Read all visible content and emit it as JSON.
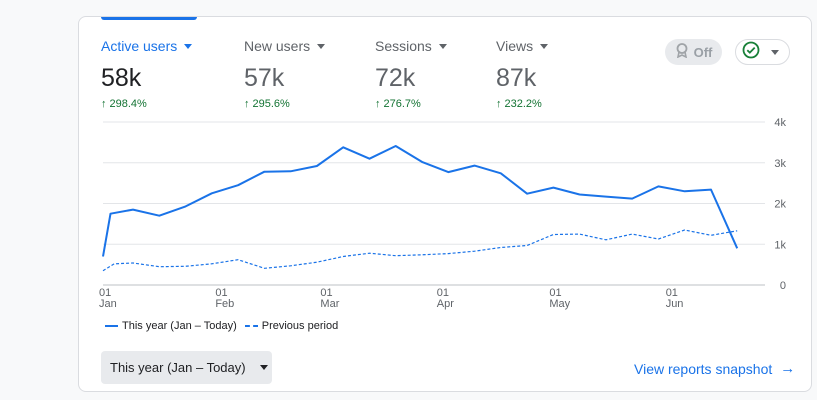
{
  "metrics": [
    {
      "label": "Active users",
      "value": "58k",
      "change": "298.4%"
    },
    {
      "label": "New users",
      "value": "57k",
      "change": "295.6%"
    },
    {
      "label": "Sessions",
      "value": "72k",
      "change": "276.7%"
    },
    {
      "label": "Views",
      "value": "87k",
      "change": "232.2%"
    }
  ],
  "toggle": {
    "label": "Off"
  },
  "chart_data": {
    "type": "line",
    "y_tick_labels": [
      "0",
      "1k",
      "2k",
      "3k",
      "4k"
    ],
    "ylim": [
      0,
      4000
    ],
    "x_ticks": [
      {
        "day": "01",
        "month": "Jan",
        "index": 0
      },
      {
        "day": "01",
        "month": "Feb",
        "index": 31
      },
      {
        "day": "01",
        "month": "Mar",
        "index": 59
      },
      {
        "day": "01",
        "month": "Apr",
        "index": 90
      },
      {
        "day": "01",
        "month": "May",
        "index": 120
      },
      {
        "day": "01",
        "month": "Jun",
        "index": 151
      }
    ],
    "grid": true,
    "series": [
      {
        "name": "This year (Jan – Today)",
        "style": "solid",
        "color": "#1a73e8",
        "points": [
          [
            0,
            700
          ],
          [
            2,
            1750
          ],
          [
            8,
            1850
          ],
          [
            15,
            1700
          ],
          [
            22,
            1930
          ],
          [
            29,
            2250
          ],
          [
            36,
            2450
          ],
          [
            43,
            2780
          ],
          [
            50,
            2790
          ],
          [
            57,
            2920
          ],
          [
            64,
            3380
          ],
          [
            71,
            3100
          ],
          [
            78,
            3410
          ],
          [
            85,
            3020
          ],
          [
            92,
            2770
          ],
          [
            99,
            2930
          ],
          [
            106,
            2740
          ],
          [
            113,
            2240
          ],
          [
            120,
            2390
          ],
          [
            127,
            2220
          ],
          [
            134,
            2170
          ],
          [
            141,
            2120
          ],
          [
            148,
            2420
          ],
          [
            155,
            2300
          ],
          [
            162,
            2340
          ],
          [
            169,
            900
          ]
        ]
      },
      {
        "name": "Previous period",
        "style": "dashed",
        "color": "#1a73e8",
        "points": [
          [
            0,
            350
          ],
          [
            3,
            520
          ],
          [
            8,
            540
          ],
          [
            15,
            450
          ],
          [
            22,
            460
          ],
          [
            29,
            520
          ],
          [
            36,
            620
          ],
          [
            43,
            410
          ],
          [
            50,
            470
          ],
          [
            57,
            560
          ],
          [
            64,
            700
          ],
          [
            71,
            780
          ],
          [
            78,
            720
          ],
          [
            85,
            740
          ],
          [
            92,
            770
          ],
          [
            99,
            830
          ],
          [
            106,
            920
          ],
          [
            113,
            970
          ],
          [
            120,
            1240
          ],
          [
            127,
            1250
          ],
          [
            134,
            1110
          ],
          [
            141,
            1250
          ],
          [
            148,
            1130
          ],
          [
            155,
            1350
          ],
          [
            162,
            1220
          ],
          [
            169,
            1330
          ]
        ]
      }
    ]
  },
  "legend": [
    {
      "label": "This year (Jan – Today)",
      "style": "solid"
    },
    {
      "label": "Previous period",
      "style": "dashed"
    }
  ],
  "date_range": {
    "label": "This year (Jan – Today)"
  },
  "view_link": {
    "label": "View reports snapshot"
  }
}
